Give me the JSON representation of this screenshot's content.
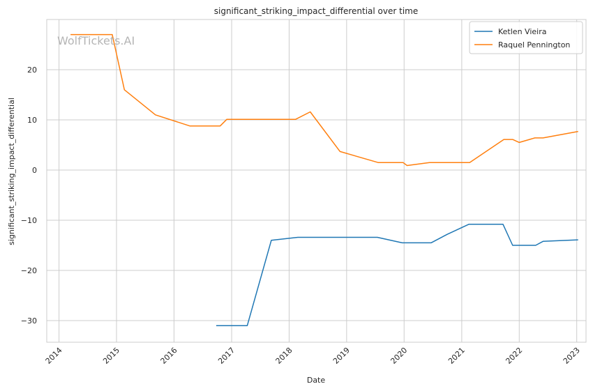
{
  "chart_data": {
    "type": "line",
    "title": "significant_striking_impact_differential over time",
    "xlabel": "Date",
    "ylabel": "significant_striking_impact_differential",
    "watermark": "WolfTickets.AI",
    "xlim": [
      "2013-10-15",
      "2023-03-01"
    ],
    "ylim": [
      -34.3,
      30.0
    ],
    "x_ticks": [
      "2014",
      "2015",
      "2016",
      "2017",
      "2018",
      "2019",
      "2020",
      "2021",
      "2022",
      "2023"
    ],
    "y_ticks": [
      -30,
      -20,
      -10,
      0,
      10,
      20
    ],
    "grid": true,
    "legend": "top-right",
    "series": [
      {
        "name": "Ketlen Vieira",
        "color": "#1f77b4",
        "points": [
          [
            "2016-09-25",
            -31.0
          ],
          [
            "2017-04-10",
            -31.0
          ],
          [
            "2017-09-10",
            -14.0
          ],
          [
            "2018-02-25",
            -13.4
          ],
          [
            "2019-07-15",
            -13.4
          ],
          [
            "2019-12-20",
            -14.5
          ],
          [
            "2020-06-20",
            -14.5
          ],
          [
            "2020-10-01",
            -12.8
          ],
          [
            "2021-02-15",
            -10.8
          ],
          [
            "2021-09-20",
            -10.8
          ],
          [
            "2021-11-20",
            -15.0
          ],
          [
            "2022-04-15",
            -15.0
          ],
          [
            "2022-06-01",
            -14.2
          ],
          [
            "2023-01-10",
            -13.9
          ]
        ]
      },
      {
        "name": "Raquel Pennington",
        "color": "#ff7f0e",
        "points": [
          [
            "2014-03-15",
            27.0
          ],
          [
            "2014-12-05",
            27.0
          ],
          [
            "2015-02-20",
            16.0
          ],
          [
            "2015-09-05",
            11.0
          ],
          [
            "2016-04-10",
            8.8
          ],
          [
            "2016-10-20",
            8.8
          ],
          [
            "2016-12-01",
            10.1
          ],
          [
            "2018-02-10",
            10.1
          ],
          [
            "2018-05-15",
            11.6
          ],
          [
            "2018-11-20",
            3.7
          ],
          [
            "2019-07-20",
            1.5
          ],
          [
            "2019-12-25",
            1.5
          ],
          [
            "2020-01-20",
            0.9
          ],
          [
            "2020-06-10",
            1.5
          ],
          [
            "2021-02-20",
            1.5
          ],
          [
            "2021-09-25",
            6.1
          ],
          [
            "2021-11-20",
            6.1
          ],
          [
            "2022-01-01",
            5.5
          ],
          [
            "2022-04-10",
            6.4
          ],
          [
            "2022-06-01",
            6.4
          ],
          [
            "2023-01-10",
            7.7
          ]
        ]
      }
    ]
  }
}
